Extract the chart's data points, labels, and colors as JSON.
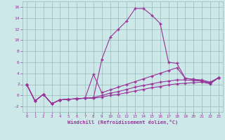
{
  "xlabel": "Windchill (Refroidissement éolien,°C)",
  "x": [
    0,
    1,
    2,
    3,
    4,
    5,
    6,
    7,
    8,
    9,
    10,
    11,
    12,
    13,
    14,
    15,
    16,
    17,
    18,
    19,
    20,
    21,
    22,
    23
  ],
  "series1": [
    2,
    -1,
    0.2,
    -1.5,
    -0.8,
    -0.7,
    -0.6,
    -0.5,
    -0.5,
    6.5,
    10.5,
    12,
    13.5,
    15.7,
    15.7,
    14.5,
    13,
    6,
    5.8,
    3.1,
    2.9,
    2.6,
    2.2,
    3.2
  ],
  "series2": [
    2,
    -1,
    0.2,
    -1.5,
    -0.8,
    -0.7,
    -0.6,
    -0.5,
    3.8,
    0.5,
    1.0,
    1.5,
    2.0,
    2.5,
    3.0,
    3.5,
    4.0,
    4.5,
    5.0,
    3.1,
    2.9,
    2.8,
    2.4,
    3.2
  ],
  "series3": [
    2,
    -1,
    0.2,
    -1.5,
    -0.8,
    -0.7,
    -0.6,
    -0.5,
    -0.4,
    0.0,
    0.4,
    0.7,
    1.1,
    1.5,
    1.8,
    2.1,
    2.4,
    2.6,
    2.8,
    2.8,
    2.7,
    2.6,
    2.3,
    3.2
  ],
  "series4": [
    2,
    -1,
    0.2,
    -1.5,
    -0.8,
    -0.7,
    -0.6,
    -0.5,
    -0.5,
    -0.3,
    0.0,
    0.2,
    0.5,
    0.8,
    1.1,
    1.4,
    1.6,
    1.9,
    2.1,
    2.2,
    2.3,
    2.4,
    2.1,
    3.2
  ],
  "line_color": "#993399",
  "bg_color": "#cce8e8",
  "grid_color": "#99bbbb",
  "ylim": [
    -3,
    17
  ],
  "xlim": [
    -0.5,
    23.5
  ],
  "yticks": [
    -2,
    0,
    2,
    4,
    6,
    8,
    10,
    12,
    14,
    16
  ],
  "xticks": [
    0,
    1,
    2,
    3,
    4,
    5,
    6,
    7,
    8,
    9,
    10,
    11,
    12,
    13,
    14,
    15,
    16,
    17,
    18,
    19,
    20,
    21,
    22,
    23
  ]
}
